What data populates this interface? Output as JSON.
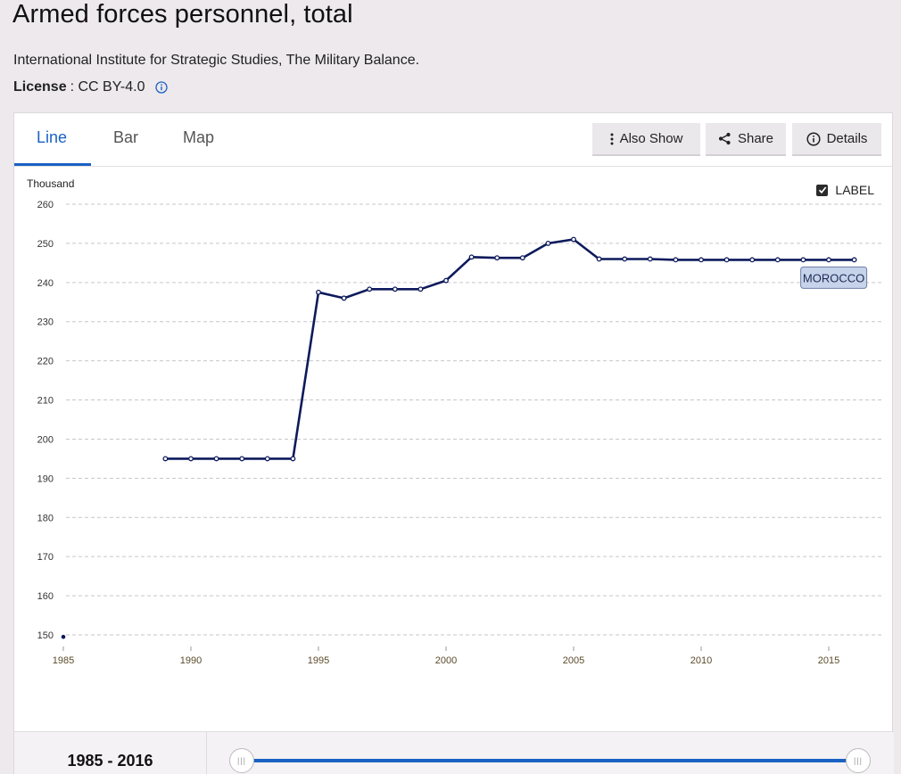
{
  "page": {
    "title": "Armed forces personnel, total",
    "source": "International Institute for Strategic Studies, The Military Balance.",
    "license_label": "License",
    "license_value": " : CC BY-4.0"
  },
  "tabs": [
    {
      "label": "Line",
      "active": true
    },
    {
      "label": "Bar",
      "active": false
    },
    {
      "label": "Map",
      "active": false
    }
  ],
  "toolbar": {
    "also_show": "Also Show",
    "share": "Share",
    "details": "Details"
  },
  "label_toggle": {
    "label": "LABEL",
    "checked": true
  },
  "range": {
    "start": "1985",
    "separator": " - ",
    "end": "2016"
  },
  "colors": {
    "accent": "#1a62c4",
    "series": "#0d1a5c",
    "label_bg": "#c7d3ea"
  },
  "chart_data": {
    "type": "line",
    "unit_label": "Thousand",
    "ylim": [
      148,
      260
    ],
    "yticks": [
      150,
      160,
      170,
      180,
      190,
      200,
      210,
      220,
      230,
      240,
      250,
      260
    ],
    "xlim": [
      1985,
      2016
    ],
    "xticks": [
      1985,
      1990,
      1995,
      2000,
      2005,
      2010,
      2015
    ],
    "grid": true,
    "series": [
      {
        "name": "MOROCCO",
        "points": [
          {
            "x": 1985,
            "y": 149.5,
            "isolated": true
          },
          {
            "x": 1989,
            "y": 195
          },
          {
            "x": 1990,
            "y": 195
          },
          {
            "x": 1991,
            "y": 195
          },
          {
            "x": 1992,
            "y": 195
          },
          {
            "x": 1993,
            "y": 195
          },
          {
            "x": 1994,
            "y": 195
          },
          {
            "x": 1995,
            "y": 237.5
          },
          {
            "x": 1996,
            "y": 236
          },
          {
            "x": 1997,
            "y": 238.3
          },
          {
            "x": 1998,
            "y": 238.3
          },
          {
            "x": 1999,
            "y": 238.3
          },
          {
            "x": 2000,
            "y": 240.5
          },
          {
            "x": 2001,
            "y": 246.5
          },
          {
            "x": 2002,
            "y": 246.3
          },
          {
            "x": 2003,
            "y": 246.3
          },
          {
            "x": 2004,
            "y": 250
          },
          {
            "x": 2005,
            "y": 251
          },
          {
            "x": 2006,
            "y": 246
          },
          {
            "x": 2007,
            "y": 246
          },
          {
            "x": 2008,
            "y": 246
          },
          {
            "x": 2009,
            "y": 245.8
          },
          {
            "x": 2010,
            "y": 245.8
          },
          {
            "x": 2011,
            "y": 245.8
          },
          {
            "x": 2012,
            "y": 245.8
          },
          {
            "x": 2013,
            "y": 245.8
          },
          {
            "x": 2014,
            "y": 245.8
          },
          {
            "x": 2015,
            "y": 245.8
          },
          {
            "x": 2016,
            "y": 245.8
          }
        ]
      }
    ]
  }
}
